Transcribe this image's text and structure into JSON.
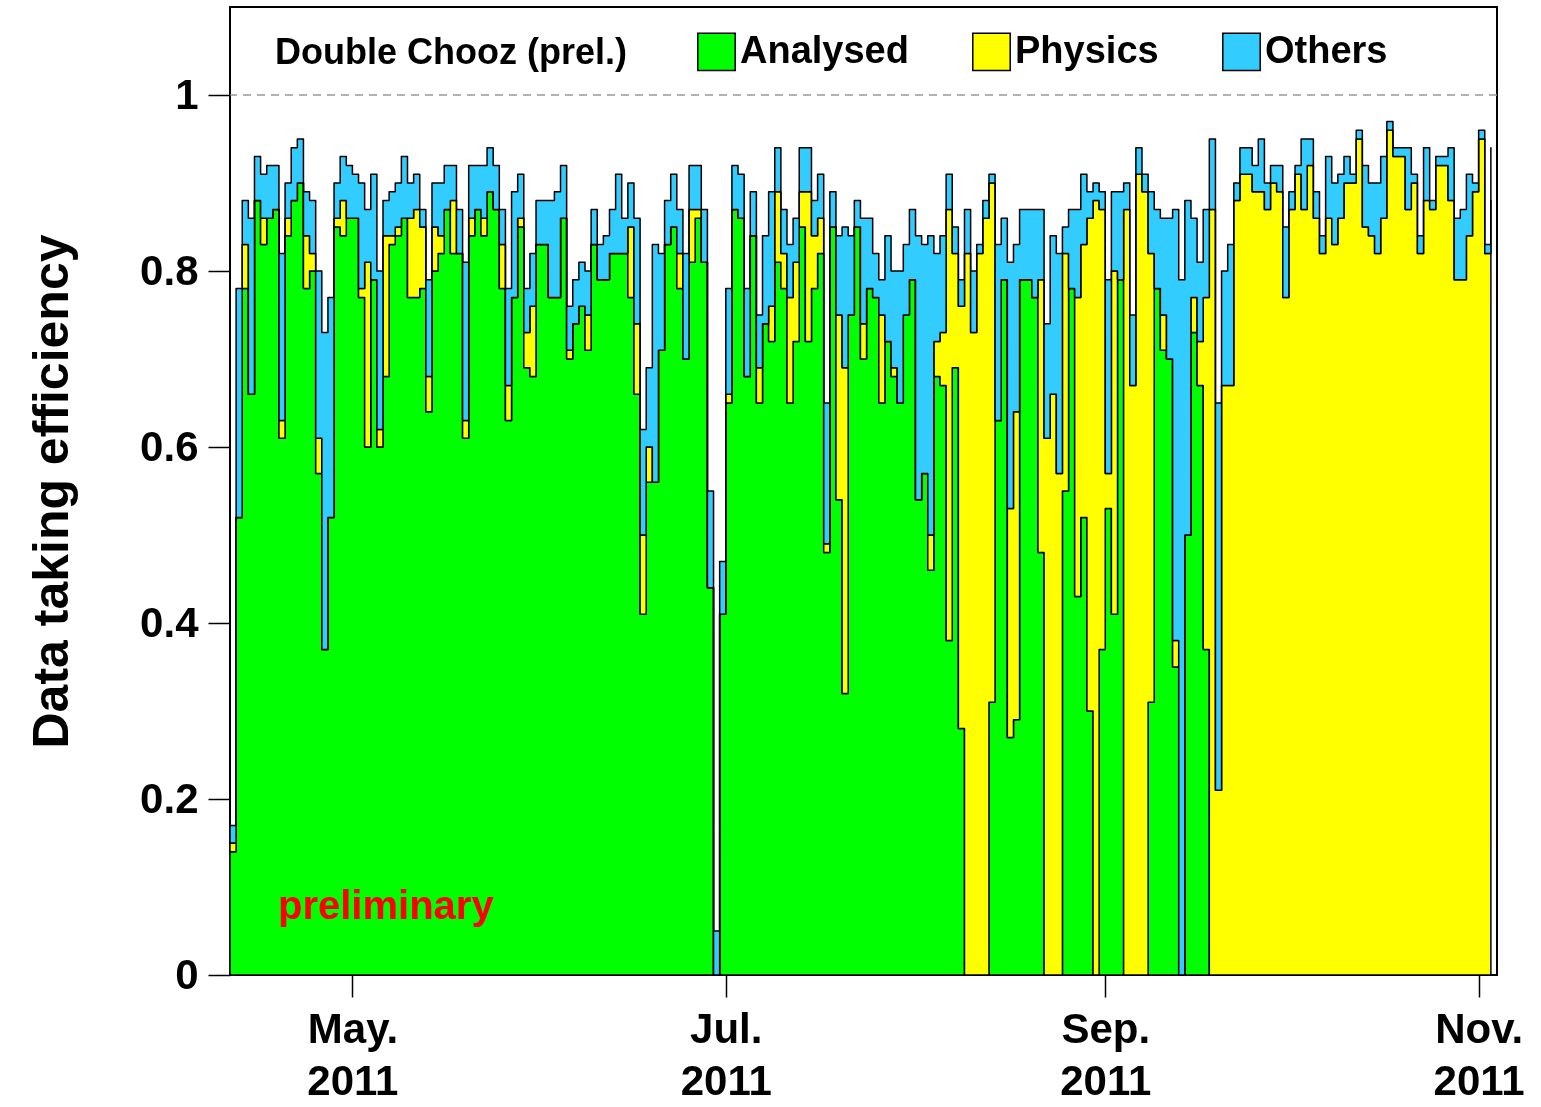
{
  "chart_data": {
    "type": "area",
    "stacked": true,
    "ylabel": "Data taking efficiency",
    "legend_title": "Double Chooz (prel.)",
    "legend": "top",
    "annotations": [
      "preliminary"
    ],
    "xlim": [
      "2011-04-11",
      "2011-11-04"
    ],
    "xticks": [
      {
        "value": "2011-05-01",
        "label": "May. 2011"
      },
      {
        "value": "2011-07-01",
        "label": "Jul. 2011"
      },
      {
        "value": "2011-09-01",
        "label": "Sep. 2011"
      },
      {
        "value": "2011-11-01",
        "label": "Nov. 2011"
      }
    ],
    "ylim": [
      0,
      1.1
    ],
    "yticks": [
      0,
      0.2,
      0.4,
      0.6,
      0.8,
      1
    ],
    "ref_lines": [
      {
        "axis": "y",
        "value": 1,
        "color": "#999999",
        "line_style": "dashed"
      }
    ],
    "x": [
      "2011-04-11",
      "2011-04-12",
      "2011-04-13",
      "2011-04-14",
      "2011-04-15",
      "2011-04-16",
      "2011-04-17",
      "2011-04-18",
      "2011-04-19",
      "2011-04-20",
      "2011-04-21",
      "2011-04-22",
      "2011-04-23",
      "2011-04-24",
      "2011-04-25",
      "2011-04-26",
      "2011-04-27",
      "2011-04-28",
      "2011-04-29",
      "2011-04-30",
      "2011-05-01",
      "2011-05-02",
      "2011-05-03",
      "2011-05-04",
      "2011-05-05",
      "2011-05-06",
      "2011-05-07",
      "2011-05-08",
      "2011-05-09",
      "2011-05-10",
      "2011-05-11",
      "2011-05-12",
      "2011-05-13",
      "2011-05-14",
      "2011-05-15",
      "2011-05-16",
      "2011-05-17",
      "2011-05-18",
      "2011-05-19",
      "2011-05-20",
      "2011-05-21",
      "2011-05-22",
      "2011-05-23",
      "2011-05-24",
      "2011-05-25",
      "2011-05-26",
      "2011-05-27",
      "2011-05-28",
      "2011-05-29",
      "2011-05-30",
      "2011-05-31",
      "2011-06-01",
      "2011-06-02",
      "2011-06-03",
      "2011-06-04",
      "2011-06-05",
      "2011-06-06",
      "2011-06-07",
      "2011-06-08",
      "2011-06-09",
      "2011-06-10",
      "2011-06-11",
      "2011-06-12",
      "2011-06-13",
      "2011-06-14",
      "2011-06-15",
      "2011-06-16",
      "2011-06-17",
      "2011-06-18",
      "2011-06-19",
      "2011-06-20",
      "2011-06-21",
      "2011-06-22",
      "2011-06-23",
      "2011-06-24",
      "2011-06-25",
      "2011-06-26",
      "2011-06-27",
      "2011-06-28",
      "2011-06-29",
      "2011-06-30",
      "2011-07-01",
      "2011-07-02",
      "2011-07-03",
      "2011-07-04",
      "2011-07-05",
      "2011-07-06",
      "2011-07-07",
      "2011-07-08",
      "2011-07-09",
      "2011-07-10",
      "2011-07-11",
      "2011-07-12",
      "2011-07-13",
      "2011-07-14",
      "2011-07-15",
      "2011-07-16",
      "2011-07-17",
      "2011-07-18",
      "2011-07-19",
      "2011-07-20",
      "2011-07-21",
      "2011-07-22",
      "2011-07-23",
      "2011-07-24",
      "2011-07-25",
      "2011-07-26",
      "2011-07-27",
      "2011-07-28",
      "2011-07-29",
      "2011-07-30",
      "2011-07-31",
      "2011-08-01",
      "2011-08-02",
      "2011-08-03",
      "2011-08-04",
      "2011-08-05",
      "2011-08-06",
      "2011-08-07",
      "2011-08-08",
      "2011-08-09",
      "2011-08-10",
      "2011-08-11",
      "2011-08-12",
      "2011-08-13",
      "2011-08-14",
      "2011-08-15",
      "2011-08-16",
      "2011-08-17",
      "2011-08-18",
      "2011-08-19",
      "2011-08-20",
      "2011-08-21",
      "2011-08-22",
      "2011-08-23",
      "2011-08-24",
      "2011-08-25",
      "2011-08-26",
      "2011-08-27",
      "2011-08-28",
      "2011-08-29",
      "2011-08-30",
      "2011-08-31",
      "2011-09-01",
      "2011-09-02",
      "2011-09-03",
      "2011-09-04",
      "2011-09-05",
      "2011-09-06",
      "2011-09-07",
      "2011-09-08",
      "2011-09-09",
      "2011-09-10",
      "2011-09-11",
      "2011-09-12",
      "2011-09-13",
      "2011-09-14",
      "2011-09-15",
      "2011-09-16",
      "2011-09-17",
      "2011-09-18",
      "2011-09-19",
      "2011-09-20",
      "2011-09-21",
      "2011-09-22",
      "2011-09-23",
      "2011-09-24",
      "2011-09-25",
      "2011-09-26",
      "2011-09-27",
      "2011-09-28",
      "2011-09-29",
      "2011-09-30",
      "2011-10-01",
      "2011-10-02",
      "2011-10-03",
      "2011-10-04",
      "2011-10-05",
      "2011-10-06",
      "2011-10-07",
      "2011-10-08",
      "2011-10-09",
      "2011-10-10",
      "2011-10-11",
      "2011-10-12",
      "2011-10-13",
      "2011-10-14",
      "2011-10-15",
      "2011-10-16",
      "2011-10-17",
      "2011-10-18",
      "2011-10-19",
      "2011-10-20",
      "2011-10-21",
      "2011-10-22",
      "2011-10-23",
      "2011-10-24",
      "2011-10-25",
      "2011-10-26",
      "2011-10-27",
      "2011-10-28",
      "2011-10-29",
      "2011-10-30",
      "2011-10-31",
      "2011-11-01",
      "2011-11-02",
      "2011-11-03"
    ],
    "series": [
      {
        "name": "Analysed",
        "color": "#00ff00",
        "values": [
          0.14,
          0.52,
          0.78,
          0.66,
          0.88,
          0.83,
          0.86,
          0.87,
          0.61,
          0.84,
          0.88,
          0.9,
          0.78,
          0.8,
          0.57,
          0.37,
          0.52,
          0.85,
          0.84,
          0.86,
          0.86,
          0.77,
          0.6,
          0.79,
          0.6,
          0.68,
          0.83,
          0.84,
          0.86,
          0.77,
          0.77,
          0.78,
          0.64,
          0.8,
          0.82,
          0.87,
          0.82,
          0.82,
          0.61,
          0.84,
          0.87,
          0.84,
          0.89,
          0.87,
          0.78,
          0.63,
          0.77,
          0.85,
          0.69,
          0.68,
          0.83,
          0.83,
          0.77,
          0.77,
          0.86,
          0.7,
          0.74,
          0.76,
          0.71,
          0.83,
          0.79,
          0.79,
          0.82,
          0.82,
          0.82,
          0.77,
          0.66,
          0.41,
          0.56,
          0.56,
          0.71,
          0.83,
          0.85,
          0.78,
          0.7,
          0.81,
          0.86,
          0.81,
          0.44,
          0,
          0.41,
          0.65,
          0.87,
          0.86,
          0.68,
          0.84,
          0.65,
          0.74,
          0.72,
          0.81,
          0.78,
          0.65,
          0.72,
          0.85,
          0.72,
          0.78,
          0.82,
          0.48,
          0.85,
          0.54,
          0.32,
          0.75,
          0.85,
          0.7,
          0.78,
          0.77,
          0.65,
          0.72,
          0.68,
          0.65,
          0.75,
          0.79,
          0.54,
          0.57,
          0.46,
          0.68,
          0.67,
          0.38,
          0.69,
          0.28,
          0,
          0,
          0,
          0,
          0.31,
          0.63,
          0.79,
          0.27,
          0.29,
          0.79,
          0.79,
          0.77,
          0.48,
          0,
          0,
          0,
          0.55,
          0.78,
          0.43,
          0.52,
          0.3,
          0,
          0.37,
          0.53,
          0.41,
          0.79,
          0,
          0,
          0,
          0,
          0.31,
          0.78,
          0.71,
          0.7,
          0.35,
          0,
          0.5,
          0.73,
          0.67,
          0.37,
          0,
          0,
          0,
          0,
          0,
          0,
          0,
          0,
          0,
          0,
          0,
          0,
          0,
          0,
          0,
          0,
          0,
          0,
          0,
          0,
          0,
          0,
          0,
          0,
          0,
          0,
          0,
          0,
          0,
          0,
          0,
          0,
          0,
          0,
          0,
          0,
          0,
          0,
          0,
          0,
          0,
          0,
          0,
          0,
          0,
          0,
          0
        ]
      },
      {
        "name": "Physics",
        "color": "#ffff00",
        "values": [
          0.01,
          0,
          0.05,
          0,
          0,
          0.03,
          0,
          0,
          0.02,
          0.02,
          0,
          0,
          0.06,
          0.02,
          0.04,
          0,
          0,
          0.01,
          0.04,
          0,
          0,
          0.01,
          0.21,
          0,
          0.02,
          0.16,
          0.01,
          0.01,
          0,
          0.09,
          0.1,
          0.07,
          0.04,
          0.05,
          0.02,
          0,
          0.06,
          0,
          0.02,
          0.02,
          0,
          0.02,
          0,
          0,
          0.05,
          0.04,
          0,
          0.01,
          0.04,
          0.08,
          0,
          0,
          0,
          0,
          0,
          0.01,
          0,
          0,
          0.04,
          0,
          0,
          0,
          0,
          0,
          0,
          0.08,
          0.08,
          0.09,
          0.04,
          0,
          0,
          0,
          0,
          0.04,
          0,
          0.06,
          0.01,
          0,
          0,
          0,
          0,
          0.01,
          0,
          0,
          0,
          0,
          0.04,
          0,
          0.04,
          0.08,
          0.04,
          0.12,
          0.09,
          0.04,
          0.17,
          0.06,
          0.04,
          0.01,
          0,
          0.21,
          0.37,
          0,
          0,
          0.04,
          0,
          0,
          0.1,
          0,
          0.01,
          0,
          0,
          0,
          0,
          0,
          0.04,
          0.04,
          0.06,
          0.49,
          0.13,
          0.48,
          0.82,
          0.73,
          0.82,
          0.86,
          0.59,
          0,
          0,
          0.26,
          0.35,
          0,
          0,
          0,
          0.31,
          0.61,
          0.66,
          0.57,
          0.27,
          0,
          0.34,
          0.31,
          0.56,
          0.88,
          0.5,
          0.04,
          0.39,
          0,
          0.87,
          0.67,
          0.91,
          0.89,
          0.51,
          0,
          0.04,
          0,
          0.03,
          0,
          0,
          0.04,
          0.05,
          0.4,
          0.87,
          0.21,
          0.67,
          0.67,
          0.88,
          0.91,
          0.91,
          0.89,
          0.89,
          0.87,
          0.9,
          0.89,
          0.77,
          0.87,
          0.91,
          0.87,
          0.92,
          0.86,
          0.82,
          0.86,
          0.83,
          0.86,
          0.9,
          0.9,
          0.95,
          0.85,
          0.84,
          0.82,
          0.86,
          0.96,
          0.93,
          0.93,
          0.87,
          0.9,
          0.82,
          0.88,
          0.87,
          0.92,
          0.92,
          0.88,
          0.79,
          0.79,
          0.84,
          0.89,
          0.95,
          0.82,
          0.88
        ]
      },
      {
        "name": "Others",
        "color": "#33ccff",
        "values": [
          0.02,
          0.26,
          0.05,
          0.2,
          0.05,
          0.05,
          0.06,
          0.05,
          0.19,
          0.04,
          0.06,
          0.05,
          0.05,
          0.06,
          0.19,
          0.36,
          0.25,
          0.04,
          0.05,
          0.06,
          0.05,
          0.12,
          0.06,
          0.12,
          0.18,
          0.04,
          0.05,
          0.05,
          0.07,
          0.04,
          0.04,
          0.02,
          0.11,
          0.05,
          0.06,
          0.05,
          0.04,
          0.05,
          0.18,
          0.06,
          0.05,
          0.06,
          0.05,
          0.05,
          0.04,
          0.11,
          0.12,
          0.05,
          0.05,
          0.06,
          0.05,
          0.05,
          0.11,
          0.12,
          0.06,
          0.05,
          0.05,
          0.05,
          0.05,
          0.04,
          0.04,
          0.05,
          0.05,
          0.09,
          0.04,
          0.05,
          0.12,
          0.12,
          0.09,
          0.27,
          0.11,
          0.05,
          0.06,
          0.05,
          0.12,
          0.05,
          0.05,
          0.06,
          0.11,
          0.05,
          0.06,
          0.12,
          0.05,
          0.05,
          0.1,
          0.05,
          0.06,
          0.1,
          0.13,
          0.05,
          0.05,
          0.06,
          0.05,
          0.05,
          0.05,
          0.04,
          0.05,
          0.16,
          0.04,
          0.09,
          0.16,
          0.09,
          0.03,
          0.12,
          0.08,
          0.05,
          0.04,
          0.12,
          0.11,
          0.15,
          0.08,
          0.08,
          0.3,
          0.26,
          0.34,
          0.1,
          0.11,
          0.04,
          0.03,
          0.03,
          0.05,
          0.07,
          0.01,
          0.02,
          0.01,
          0.2,
          0.07,
          0.28,
          0.19,
          0.08,
          0.08,
          0.1,
          0.08,
          0.13,
          0.18,
          0.25,
          0.03,
          0.09,
          0.1,
          0.08,
          0.03,
          0.02,
          0.02,
          0.22,
          0.09,
          0.1,
          0.03,
          0.08,
          0.03,
          0.02,
          0.07,
          0.09,
          0.11,
          0.16,
          0.49,
          0.79,
          0.38,
          0.09,
          0.09,
          0.1,
          0.08,
          0.44,
          0.13,
          0.16,
          0.02,
          0.03,
          0.03,
          0.03,
          0.06,
          0.03,
          0.02,
          0.03,
          0.08,
          0.02,
          0.01,
          0.08,
          0.03,
          0.03,
          0.02,
          0.07,
          0.07,
          0.05,
          0.03,
          0.01,
          0.01,
          0.07,
          0.06,
          0.08,
          0.07,
          0.01,
          0.01,
          0.01,
          0.07,
          0.01,
          0.02,
          0.06,
          0.01,
          0.01,
          0.01,
          0.06,
          0.07,
          0.08,
          0.07,
          0.01,
          0.01,
          0.01,
          0.06
        ]
      }
    ]
  }
}
